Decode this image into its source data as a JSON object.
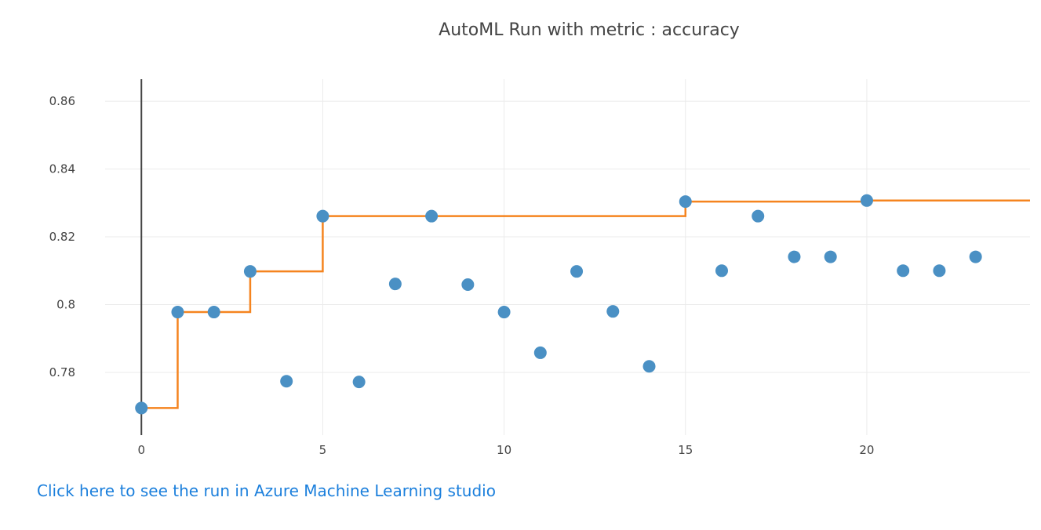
{
  "chart_data": {
    "type": "scatter",
    "title": "AutoML Run with metric : accuracy",
    "xlabel": "",
    "ylabel": "",
    "xlim": [
      -1,
      24.5
    ],
    "ylim": [
      0.7615,
      0.8665
    ],
    "xticks": [
      0,
      5,
      10,
      15,
      20
    ],
    "xtick_labels": [
      "0",
      "5",
      "10",
      "15",
      "20"
    ],
    "yticks": [
      0.78,
      0.8,
      0.82,
      0.84,
      0.86
    ],
    "ytick_labels": [
      "0.78",
      "0.8",
      "0.82",
      "0.84",
      "0.86"
    ],
    "grid": true,
    "legend": "none",
    "series": [
      {
        "kind": "markers",
        "color": "#4a90c4",
        "x": [
          0,
          1,
          2,
          3,
          4,
          5,
          6,
          7,
          8,
          9,
          10,
          11,
          12,
          13,
          14,
          15,
          16,
          17,
          18,
          19,
          20,
          21,
          22,
          23
        ],
        "y": [
          0.7695,
          0.7978,
          0.7978,
          0.8098,
          0.7774,
          0.8261,
          0.7772,
          0.8061,
          0.8261,
          0.8059,
          0.7978,
          0.7858,
          0.8098,
          0.798,
          0.7818,
          0.8304,
          0.81,
          0.8261,
          0.8141,
          0.8141,
          0.8307,
          0.81,
          0.81,
          0.8141
        ]
      },
      {
        "kind": "step-line",
        "color": "#f5841f",
        "x": [
          0,
          1,
          2,
          3,
          4,
          5,
          6,
          7,
          8,
          9,
          10,
          11,
          12,
          13,
          14,
          15,
          16,
          17,
          18,
          19,
          20,
          21,
          22,
          23,
          24.5
        ],
        "y": [
          0.7695,
          0.7978,
          0.7978,
          0.8098,
          0.8098,
          0.8261,
          0.8261,
          0.8261,
          0.8261,
          0.8261,
          0.8261,
          0.8261,
          0.8261,
          0.8261,
          0.8261,
          0.8304,
          0.8304,
          0.8304,
          0.8304,
          0.8304,
          0.8307,
          0.8307,
          0.8307,
          0.8307,
          0.8307
        ]
      }
    ]
  },
  "link_text": "Click here to see the run in Azure Machine Learning studio"
}
